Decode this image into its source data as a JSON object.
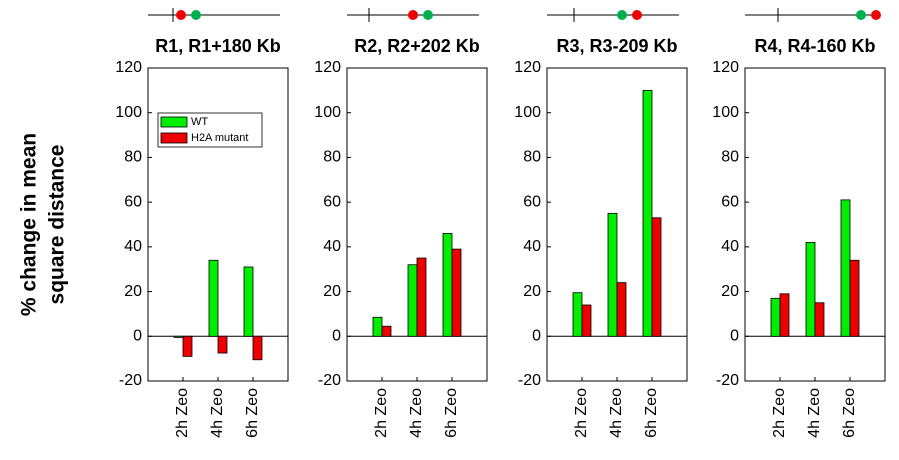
{
  "chart_data": [
    {
      "type": "bar",
      "title": "R1, R1+180 Kb",
      "ylabel": [
        "% change in mean",
        "square distance"
      ],
      "categories": [
        "2h Zeo",
        "4h Zeo",
        "6h Zeo"
      ],
      "series": [
        {
          "name": "WT",
          "color": "#00ee00",
          "values": [
            -0.5,
            34,
            31
          ]
        },
        {
          "name": "H2A mutant",
          "color": "#ee0000",
          "values": [
            -9,
            -7.5,
            -10.5
          ]
        }
      ],
      "ylim": [
        -20,
        120
      ],
      "yticks": [
        -20,
        0,
        20,
        40,
        60,
        80,
        100,
        120
      ],
      "legend": "upper left"
    },
    {
      "type": "bar",
      "title": "R2, R2+202 Kb",
      "categories": [
        "2h Zeo",
        "4h Zeo",
        "6h Zeo"
      ],
      "series": [
        {
          "color": "#00ee00",
          "values": [
            8.5,
            32,
            46
          ]
        },
        {
          "color": "#ee0000",
          "values": [
            4.5,
            35,
            39
          ]
        }
      ],
      "ylim": [
        -20,
        120
      ],
      "yticks": [
        -20,
        0,
        20,
        40,
        60,
        80,
        100,
        120
      ]
    },
    {
      "type": "bar",
      "title": "R3, R3-209 Kb",
      "categories": [
        "2h Zeo",
        "4h Zeo",
        "6h Zeo"
      ],
      "series": [
        {
          "color": "#00ee00",
          "values": [
            19.5,
            55,
            110
          ]
        },
        {
          "color": "#ee0000",
          "values": [
            14,
            24,
            53
          ]
        }
      ],
      "ylim": [
        -20,
        120
      ],
      "yticks": [
        -20,
        0,
        20,
        40,
        60,
        80,
        100,
        120
      ]
    },
    {
      "type": "bar",
      "title": "R4, R4-160 Kb",
      "categories": [
        "2h Zeo",
        "4h Zeo",
        "6h Zeo"
      ],
      "series": [
        {
          "color": "#00ee00",
          "values": [
            17,
            42,
            61
          ]
        },
        {
          "color": "#ee0000",
          "values": [
            19,
            15,
            34
          ]
        }
      ],
      "ylim": [
        -20,
        120
      ],
      "yticks": [
        -20,
        0,
        20,
        40,
        60,
        80,
        100,
        120
      ]
    }
  ]
}
